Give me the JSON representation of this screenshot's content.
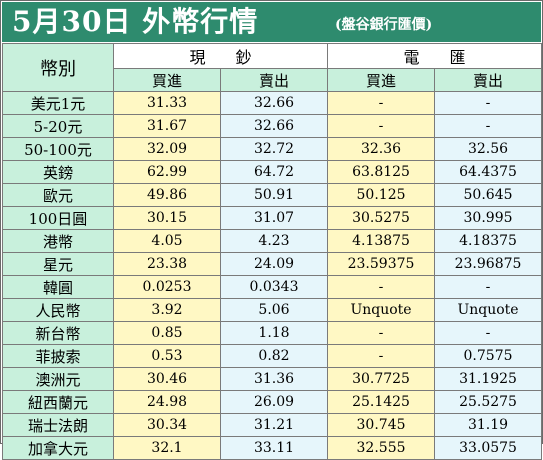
{
  "title": "5月30日 外幣行情",
  "subtitle": "(盤谷銀行匯價)",
  "colors": {
    "title_bg": "#2e8b6e",
    "header_bg": "#c8f0dc",
    "buy_bg": "#fff8c4",
    "sell_bg": "#e6f6fb"
  },
  "table": {
    "corner_label": "幣別",
    "groups": [
      "現鈔",
      "電匯"
    ],
    "subheaders": [
      "買進",
      "賣出",
      "買進",
      "賣出"
    ],
    "rows": [
      {
        "name": "美元1元",
        "values": [
          "31.33",
          "32.66",
          "-",
          "-"
        ]
      },
      {
        "name": "5-20元",
        "values": [
          "31.67",
          "32.66",
          "-",
          "-"
        ]
      },
      {
        "name": "50-100元",
        "values": [
          "32.09",
          "32.72",
          "32.36",
          "32.56"
        ]
      },
      {
        "name": "英鎊",
        "values": [
          "62.99",
          "64.72",
          "63.8125",
          "64.4375"
        ]
      },
      {
        "name": "歐元",
        "values": [
          "49.86",
          "50.91",
          "50.125",
          "50.645"
        ]
      },
      {
        "name": "100日圓",
        "values": [
          "30.15",
          "31.07",
          "30.5275",
          "30.995"
        ]
      },
      {
        "name": "港幣",
        "values": [
          "4.05",
          "4.23",
          "4.13875",
          "4.18375"
        ]
      },
      {
        "name": "星元",
        "values": [
          "23.38",
          "24.09",
          "23.59375",
          "23.96875"
        ]
      },
      {
        "name": "韓圓",
        "values": [
          "0.0253",
          "0.0343",
          "-",
          "-"
        ]
      },
      {
        "name": "人民幣",
        "values": [
          "3.92",
          "5.06",
          "Unquote",
          "Unquote"
        ]
      },
      {
        "name": "新台幣",
        "values": [
          "0.85",
          "1.18",
          "-",
          "-"
        ]
      },
      {
        "name": "菲披索",
        "values": [
          "0.53",
          "0.82",
          "-",
          "0.7575"
        ]
      },
      {
        "name": "澳洲元",
        "values": [
          "30.46",
          "31.36",
          "30.7725",
          "31.1925"
        ]
      },
      {
        "name": "紐西蘭元",
        "values": [
          "24.98",
          "26.09",
          "25.1425",
          "25.5275"
        ]
      },
      {
        "name": "瑞士法朗",
        "values": [
          "30.34",
          "31.21",
          "30.745",
          "31.19"
        ]
      },
      {
        "name": "加拿大元",
        "values": [
          "32.1",
          "33.11",
          "32.555",
          "33.0575"
        ]
      }
    ]
  }
}
